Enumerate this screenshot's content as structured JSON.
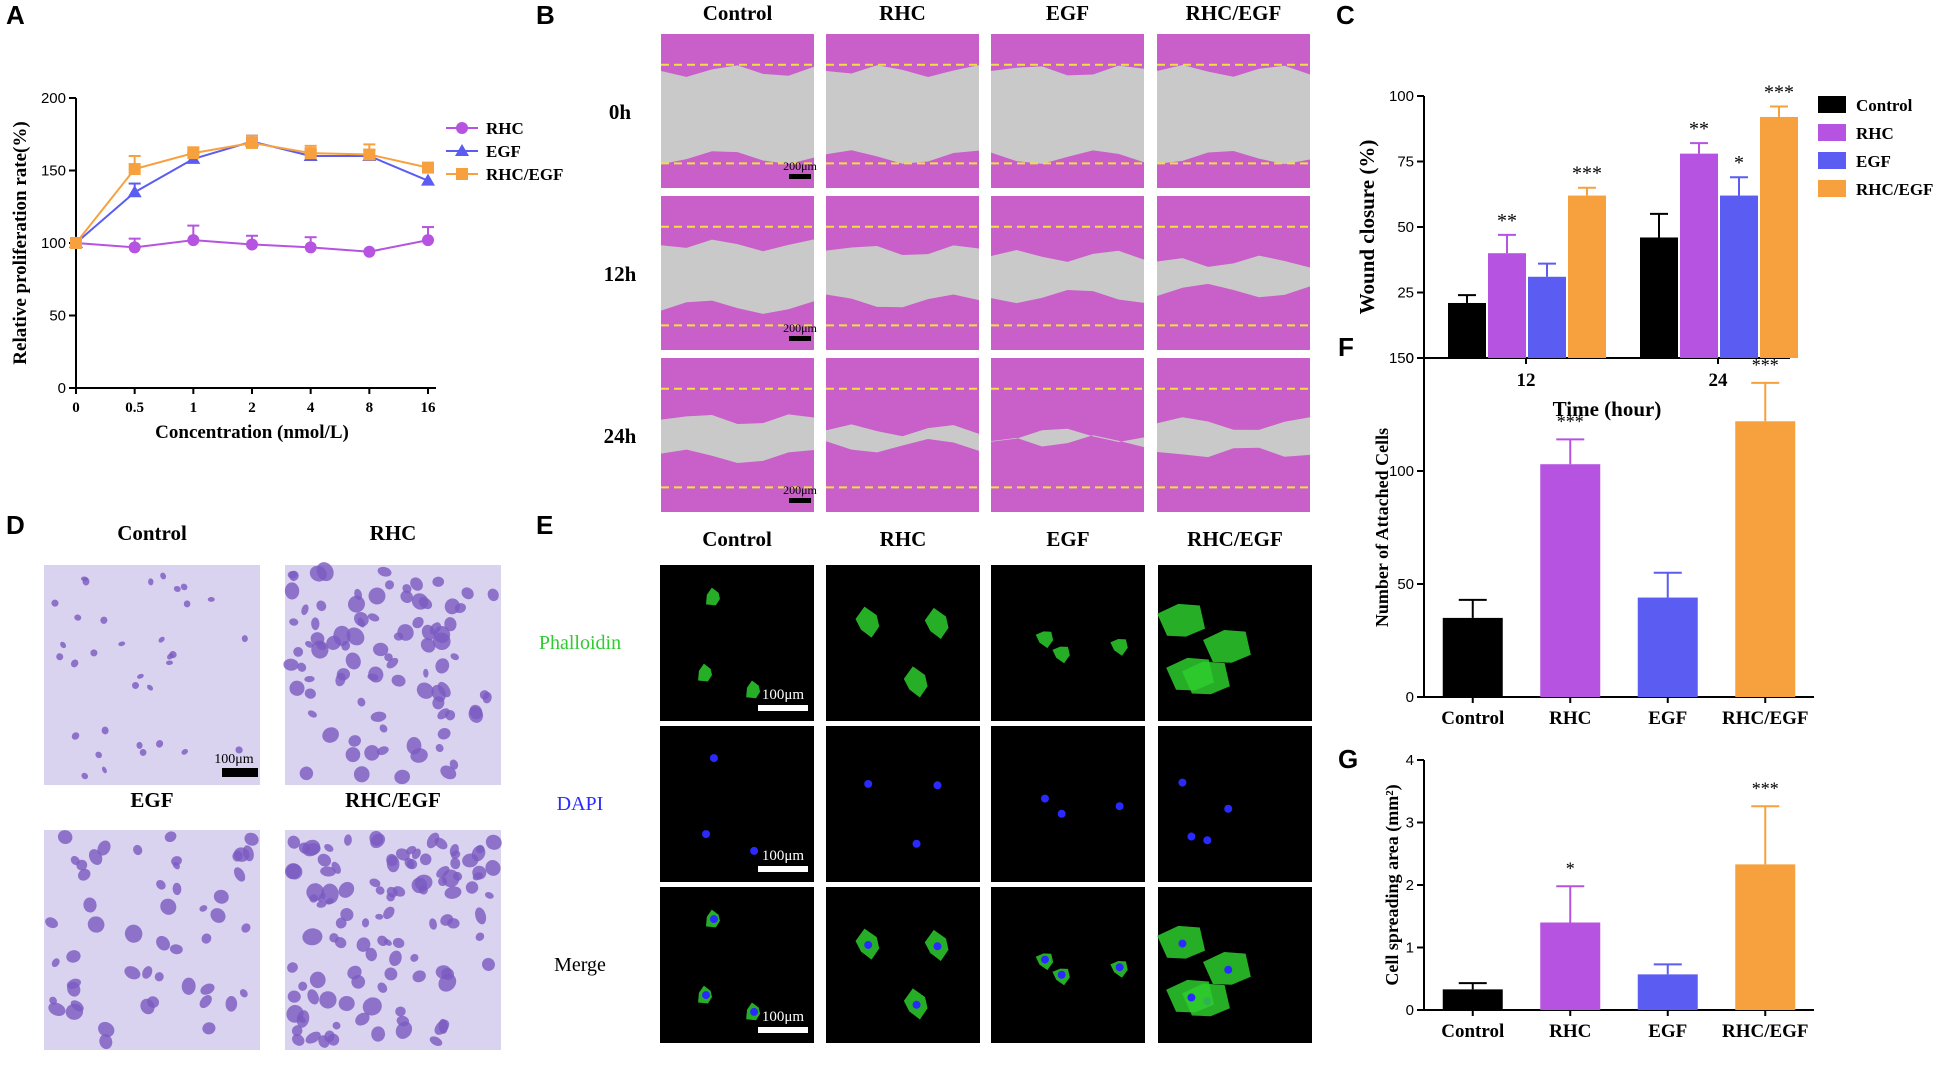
{
  "panel_letters": [
    "A",
    "B",
    "C",
    "D",
    "E",
    "F",
    "G"
  ],
  "colors": {
    "Control": "#000000",
    "RHC": "#b653e0",
    "EGF": "#5a5cf2",
    "RHC/EGF": "#f7a13e",
    "scratch_purple": "#c95fc9",
    "wound_gray": "#c9c9c9",
    "stain_bg": "#d9d3f0",
    "cell_violet": "#7a5ac0",
    "phalloidin_green": "#2ecc2e",
    "dapi_blue": "#2a2aff",
    "dash_yellow": "#f0e040"
  },
  "panel_B": {
    "groups": [
      "Control",
      "RHC",
      "EGF",
      "RHC/EGF"
    ],
    "timepoints": [
      "0h",
      "12h",
      "24h"
    ],
    "scale_bar": "200μm"
  },
  "panel_D": {
    "groups": [
      "Control",
      "RHC",
      "EGF",
      "RHC/EGF"
    ],
    "scale_bar": "100μm"
  },
  "panel_F": {
    "groups": [
      "Control",
      "RHC",
      "EGF",
      "RHC/EGF"
    ],
    "channels": [
      "Phalloidin",
      "DAPI",
      "Merge"
    ],
    "scale_bar": "100μm"
  },
  "chart_data": [
    {
      "panel": "A",
      "type": "line",
      "xlabel": "Concentration (nmol/L)",
      "ylabel": "Relative proliferation rate(%)",
      "x": [
        "0",
        "0.5",
        "1",
        "2",
        "4",
        "8",
        "16"
      ],
      "ylim": [
        0,
        200
      ],
      "yticks": [
        0,
        50,
        100,
        150,
        200
      ],
      "legend_position": "right",
      "series": [
        {
          "name": "RHC",
          "marker": "circle",
          "values": [
            100,
            97,
            102,
            99,
            97,
            94,
            102
          ],
          "errors": [
            0,
            6,
            10,
            6,
            7,
            0,
            9
          ]
        },
        {
          "name": "EGF",
          "marker": "triangle",
          "values": [
            100,
            135,
            158,
            170,
            160,
            160,
            143
          ],
          "errors": [
            0,
            6,
            4,
            4,
            4,
            4,
            0
          ]
        },
        {
          "name": "RHC/EGF",
          "marker": "square",
          "values": [
            100,
            151,
            162,
            169,
            162,
            161,
            152
          ],
          "errors": [
            0,
            9,
            4,
            5,
            5,
            7,
            0
          ]
        }
      ]
    },
    {
      "panel": "C",
      "type": "bar",
      "xlabel": "Time (hour)",
      "ylabel": "Wound closure (%)",
      "categories": [
        "12",
        "24"
      ],
      "ylim": [
        0,
        100
      ],
      "yticks": [
        0,
        25,
        50,
        75,
        100
      ],
      "legend_position": "right",
      "series": [
        {
          "name": "Control",
          "values": [
            21,
            46
          ],
          "errors": [
            3,
            9
          ],
          "sig": [
            "",
            ""
          ]
        },
        {
          "name": "RHC",
          "values": [
            40,
            78
          ],
          "errors": [
            7,
            4
          ],
          "sig": [
            "**",
            "**"
          ]
        },
        {
          "name": "EGF",
          "values": [
            31,
            62
          ],
          "errors": [
            5,
            7
          ],
          "sig": [
            "",
            "*"
          ]
        },
        {
          "name": "RHC/EGF",
          "values": [
            62,
            92
          ],
          "errors": [
            3,
            4
          ],
          "sig": [
            "***",
            "***"
          ]
        }
      ]
    },
    {
      "panel": "E",
      "type": "bar",
      "ylabel": "Number of Attached Cells",
      "categories": [
        "Control",
        "RHC",
        "EGF",
        "RHC/EGF"
      ],
      "values": [
        35,
        103,
        44,
        122
      ],
      "errors": [
        8,
        11,
        11,
        17
      ],
      "sig": [
        "",
        "***",
        "",
        "***"
      ],
      "ylim": [
        0,
        150
      ],
      "yticks": [
        0,
        50,
        100,
        150
      ]
    },
    {
      "panel": "G",
      "type": "bar",
      "ylabel": "Cell spreading area (mm²)",
      "categories": [
        "Control",
        "RHC",
        "EGF",
        "RHC/EGF"
      ],
      "values": [
        0.33,
        1.4,
        0.57,
        2.33
      ],
      "errors": [
        0.1,
        0.58,
        0.16,
        0.93
      ],
      "sig": [
        "",
        "*",
        "",
        "***"
      ],
      "ylim": [
        0,
        4
      ],
      "yticks": [
        0,
        1,
        2,
        3,
        4
      ]
    }
  ]
}
